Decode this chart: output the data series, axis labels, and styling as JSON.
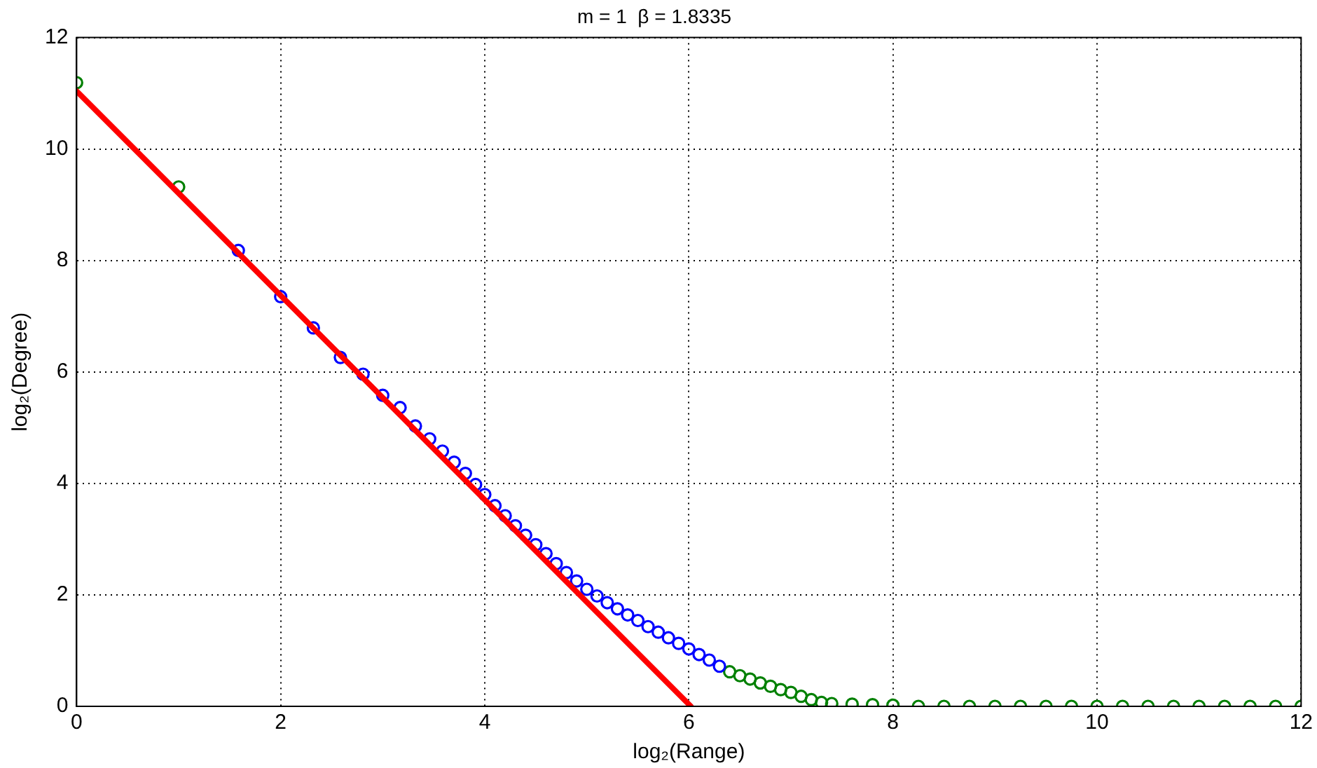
{
  "chart_data": {
    "type": "scatter",
    "title": "m = 1  β = 1.8335",
    "xlabel": "log₂(Range)",
    "ylabel": "log₂(Degree)",
    "xlim": [
      0,
      12
    ],
    "xticks": [
      0,
      2,
      4,
      6,
      8,
      10,
      12
    ],
    "ylim": [
      0,
      12
    ],
    "yticks": [
      0,
      2,
      4,
      6,
      8,
      10,
      12
    ],
    "grid": true,
    "series": [
      {
        "type": "line",
        "color": "#ff0000",
        "marker": "none",
        "x": [
          0,
          6.02
        ],
        "values": [
          11.04,
          0
        ]
      },
      {
        "color": "#0000ff",
        "marker": "circle",
        "x": [
          1.585,
          2,
          2.32,
          2.585,
          2.807,
          3,
          3.17,
          3.32,
          3.46,
          3.585,
          3.7,
          3.81,
          3.91,
          4,
          4.1,
          4.2,
          4.3,
          4.4,
          4.5,
          4.6,
          4.7,
          4.8,
          4.9,
          5,
          5.1,
          5.2,
          5.3,
          5.4,
          5.5,
          5.6,
          5.7,
          5.8,
          5.9,
          6,
          6.1,
          6.2,
          6.3
        ],
        "values": [
          8.18,
          7.35,
          6.79,
          6.26,
          5.96,
          5.58,
          5.36,
          5.03,
          4.8,
          4.58,
          4.38,
          4.18,
          3.98,
          3.8,
          3.6,
          3.42,
          3.24,
          3.07,
          2.9,
          2.74,
          2.56,
          2.4,
          2.25,
          2.1,
          1.98,
          1.86,
          1.75,
          1.64,
          1.54,
          1.43,
          1.33,
          1.23,
          1.13,
          1.03,
          0.93,
          0.83,
          0.72
        ]
      },
      {
        "color": "#008000",
        "marker": "circle",
        "x": [
          0,
          1,
          6.4,
          6.5,
          6.6,
          6.7,
          6.8,
          6.9,
          7,
          7.1,
          7.2,
          7.3,
          7.4,
          7.6,
          7.8,
          8,
          8.25,
          8.5,
          8.75,
          9,
          9.25,
          9.5,
          9.75,
          10,
          10.25,
          10.5,
          10.75,
          11,
          11.25,
          11.5,
          11.75,
          12
        ],
        "values": [
          11.19,
          9.32,
          0.62,
          0.55,
          0.49,
          0.42,
          0.36,
          0.3,
          0.25,
          0.18,
          0.12,
          0.07,
          0.05,
          0.04,
          0.03,
          0.02,
          0,
          0,
          0,
          0,
          0,
          0,
          0,
          0,
          0,
          0,
          0,
          0,
          0,
          0,
          0,
          0
        ]
      }
    ]
  }
}
